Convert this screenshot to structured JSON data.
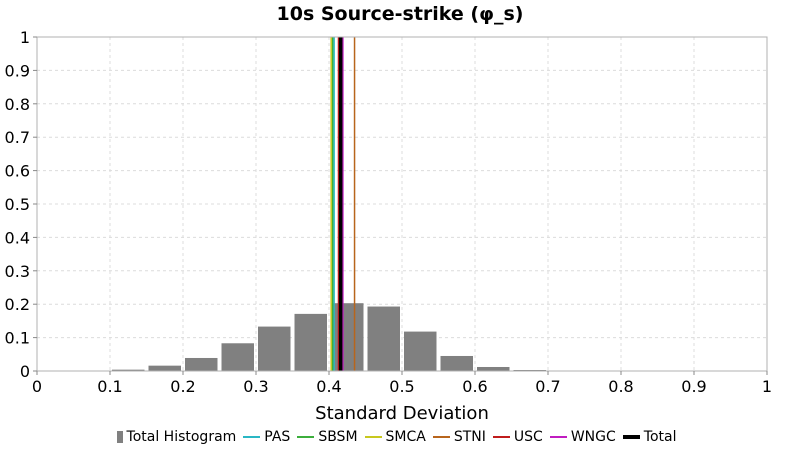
{
  "chart_data": {
    "type": "bar",
    "title": "10s Source-strike (φ_s)",
    "xlabel": "Standard Deviation",
    "ylabel": "",
    "xlim": [
      0,
      1
    ],
    "ylim": [
      0,
      1
    ],
    "x_ticks": [
      "0",
      "0.1",
      "0.2",
      "0.3",
      "0.4",
      "0.5",
      "0.6",
      "0.7",
      "0.8",
      "0.9",
      "1"
    ],
    "y_ticks": [
      "0",
      "0.1",
      "0.2",
      "0.3",
      "0.4",
      "0.5",
      "0.6",
      "0.7",
      "0.8",
      "0.9",
      "1"
    ],
    "grid": true,
    "legend_position": "bottom",
    "histogram": {
      "name": "Total Histogram",
      "color": "#808080",
      "bin_width": 0.05,
      "bins": [
        {
          "x": 0.125,
          "value": 0.004
        },
        {
          "x": 0.175,
          "value": 0.016
        },
        {
          "x": 0.225,
          "value": 0.039
        },
        {
          "x": 0.275,
          "value": 0.083
        },
        {
          "x": 0.325,
          "value": 0.133
        },
        {
          "x": 0.375,
          "value": 0.171
        },
        {
          "x": 0.425,
          "value": 0.203
        },
        {
          "x": 0.475,
          "value": 0.193
        },
        {
          "x": 0.525,
          "value": 0.118
        },
        {
          "x": 0.575,
          "value": 0.045
        },
        {
          "x": 0.625,
          "value": 0.012
        },
        {
          "x": 0.675,
          "value": 0.003
        }
      ]
    },
    "vlines": [
      {
        "name": "PAS",
        "x": 0.407,
        "color": "#2ab7c4",
        "width": 1.5
      },
      {
        "name": "SBSM",
        "x": 0.405,
        "color": "#3cae3c",
        "width": 1.5
      },
      {
        "name": "SMCA",
        "x": 0.403,
        "color": "#c8c81e",
        "width": 1.5
      },
      {
        "name": "STNI",
        "x": 0.435,
        "color": "#b8651c",
        "width": 1.5
      },
      {
        "name": "USC",
        "x": 0.413,
        "color": "#c01c1c",
        "width": 1.5
      },
      {
        "name": "WNGC",
        "x": 0.419,
        "color": "#c01cc0",
        "width": 1.5
      },
      {
        "name": "Total",
        "x": 0.416,
        "color": "#000000",
        "width": 3.5
      }
    ],
    "legend": [
      {
        "label": "Total Histogram",
        "kind": "box",
        "color": "#808080"
      },
      {
        "label": "PAS",
        "kind": "line",
        "color": "#2ab7c4"
      },
      {
        "label": "SBSM",
        "kind": "line",
        "color": "#3cae3c"
      },
      {
        "label": "SMCA",
        "kind": "line",
        "color": "#c8c81e"
      },
      {
        "label": "STNI",
        "kind": "line",
        "color": "#b8651c"
      },
      {
        "label": "USC",
        "kind": "line",
        "color": "#c01c1c"
      },
      {
        "label": "WNGC",
        "kind": "line",
        "color": "#c01cc0"
      },
      {
        "label": "Total",
        "kind": "thick-line",
        "color": "#000000"
      }
    ]
  }
}
